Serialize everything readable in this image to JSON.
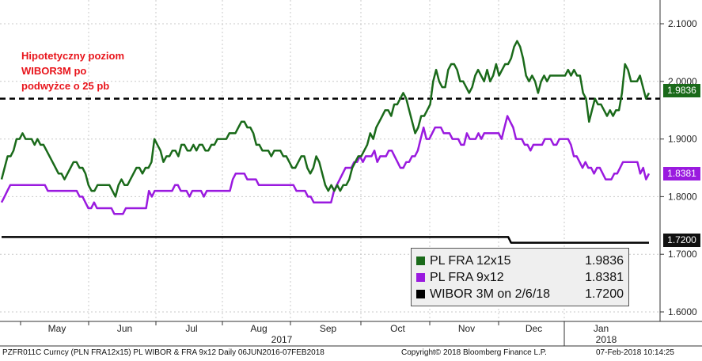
{
  "chart_data": {
    "type": "line",
    "annotation": {
      "lines": [
        "Hipotetyczny poziom",
        "WIBOR3M po",
        "podwyżce o 25 pb"
      ],
      "reference_value": 1.97,
      "style": "dashed black"
    },
    "yticks": [
      "2.1000",
      "2.0000",
      "1.9000",
      "1.8000",
      "1.7000",
      "1.6000"
    ],
    "ytick_values": [
      2.1,
      2.0,
      1.9,
      1.8,
      1.7,
      1.6
    ],
    "ylim": [
      1.58,
      2.14
    ],
    "months": [
      "May",
      "Jun",
      "Jul",
      "Aug",
      "Sep",
      "Oct",
      "Nov",
      "Dec",
      "Jan"
    ],
    "years": [
      "2017",
      "2018"
    ],
    "grid": true,
    "legend_placement": "bottom-right",
    "series": [
      {
        "name": "PL FRA 12x15",
        "value_label": "1.9836",
        "color": "#1a6a1a",
        "values": [
          1.83,
          1.85,
          1.87,
          1.87,
          1.88,
          1.9,
          1.9,
          1.91,
          1.9,
          1.9,
          1.9,
          1.89,
          1.9,
          1.89,
          1.89,
          1.88,
          1.87,
          1.86,
          1.85,
          1.84,
          1.84,
          1.83,
          1.84,
          1.85,
          1.86,
          1.86,
          1.85,
          1.85,
          1.84,
          1.82,
          1.81,
          1.81,
          1.82,
          1.82,
          1.82,
          1.82,
          1.82,
          1.81,
          1.8,
          1.82,
          1.83,
          1.82,
          1.82,
          1.83,
          1.84,
          1.85,
          1.85,
          1.84,
          1.85,
          1.85,
          1.86,
          1.9,
          1.89,
          1.88,
          1.86,
          1.87,
          1.87,
          1.88,
          1.88,
          1.87,
          1.89,
          1.89,
          1.88,
          1.88,
          1.89,
          1.88,
          1.89,
          1.89,
          1.88,
          1.88,
          1.89,
          1.89,
          1.9,
          1.9,
          1.9,
          1.9,
          1.91,
          1.91,
          1.91,
          1.92,
          1.93,
          1.93,
          1.92,
          1.92,
          1.91,
          1.89,
          1.89,
          1.88,
          1.88,
          1.88,
          1.87,
          1.88,
          1.88,
          1.88,
          1.87,
          1.87,
          1.86,
          1.85,
          1.85,
          1.86,
          1.87,
          1.87,
          1.85,
          1.84,
          1.85,
          1.87,
          1.86,
          1.84,
          1.82,
          1.81,
          1.82,
          1.81,
          1.82,
          1.81,
          1.82,
          1.82,
          1.83,
          1.85,
          1.86,
          1.87,
          1.87,
          1.88,
          1.89,
          1.91,
          1.9,
          1.92,
          1.93,
          1.94,
          1.95,
          1.95,
          1.94,
          1.96,
          1.96,
          1.97,
          1.98,
          1.97,
          1.95,
          1.93,
          1.91,
          1.92,
          1.94,
          1.94,
          1.95,
          1.96,
          2.0,
          2.02,
          2.0,
          1.99,
          1.99,
          2.02,
          2.03,
          2.03,
          2.02,
          2.0,
          2.0,
          1.99,
          1.98,
          1.99,
          2.01,
          2.02,
          2.01,
          2.0,
          2.02,
          2.0,
          2.01,
          2.03,
          2.01,
          2.02,
          2.03,
          2.03,
          2.04,
          2.06,
          2.07,
          2.06,
          2.04,
          2.01,
          2.0,
          2.01,
          2.0,
          1.98,
          2.0,
          2.01,
          2.0,
          2.01,
          2.01,
          2.01,
          2.01,
          2.01,
          2.01,
          2.02,
          2.01,
          2.02,
          2.01,
          2.01,
          1.98,
          1.97,
          1.93,
          1.95,
          1.97,
          1.96,
          1.96,
          1.95,
          1.94,
          1.95,
          1.94,
          1.95,
          1.95,
          1.98,
          2.03,
          2.02,
          2.0,
          2.0,
          2.0,
          2.01,
          1.99,
          1.97,
          1.98
        ]
      },
      {
        "name": "PL FRA 9x12",
        "value_label": "1.8381",
        "color": "#9a1adf",
        "values": [
          1.79,
          1.8,
          1.81,
          1.82,
          1.82,
          1.82,
          1.82,
          1.82,
          1.82,
          1.82,
          1.82,
          1.82,
          1.82,
          1.82,
          1.82,
          1.82,
          1.81,
          1.81,
          1.81,
          1.81,
          1.81,
          1.81,
          1.81,
          1.81,
          1.81,
          1.81,
          1.81,
          1.8,
          1.8,
          1.79,
          1.78,
          1.78,
          1.79,
          1.78,
          1.78,
          1.78,
          1.78,
          1.78,
          1.78,
          1.77,
          1.77,
          1.77,
          1.77,
          1.78,
          1.78,
          1.78,
          1.78,
          1.78,
          1.78,
          1.78,
          1.78,
          1.81,
          1.8,
          1.81,
          1.81,
          1.81,
          1.81,
          1.81,
          1.81,
          1.81,
          1.82,
          1.82,
          1.81,
          1.81,
          1.81,
          1.8,
          1.81,
          1.81,
          1.81,
          1.81,
          1.8,
          1.81,
          1.81,
          1.81,
          1.81,
          1.81,
          1.81,
          1.81,
          1.81,
          1.81,
          1.83,
          1.84,
          1.84,
          1.84,
          1.84,
          1.83,
          1.83,
          1.83,
          1.83,
          1.82,
          1.82,
          1.82,
          1.82,
          1.82,
          1.82,
          1.82,
          1.82,
          1.82,
          1.82,
          1.82,
          1.82,
          1.82,
          1.81,
          1.81,
          1.81,
          1.81,
          1.8,
          1.8,
          1.79,
          1.79,
          1.79,
          1.79,
          1.79,
          1.79,
          1.79,
          1.81,
          1.82,
          1.83,
          1.84,
          1.85,
          1.85,
          1.85,
          1.86,
          1.86,
          1.87,
          1.86,
          1.87,
          1.87,
          1.87,
          1.88,
          1.86,
          1.87,
          1.87,
          1.87,
          1.88,
          1.88,
          1.87,
          1.86,
          1.85,
          1.85,
          1.86,
          1.86,
          1.87,
          1.87,
          1.88,
          1.9,
          1.92,
          1.9,
          1.9,
          1.91,
          1.92,
          1.92,
          1.92,
          1.91,
          1.91,
          1.91,
          1.9,
          1.9,
          1.9,
          1.89,
          1.89,
          1.91,
          1.9,
          1.9,
          1.9,
          1.91,
          1.9,
          1.91,
          1.91,
          1.91,
          1.91,
          1.91,
          1.91,
          1.9,
          1.92,
          1.94,
          1.93,
          1.92,
          1.9,
          1.9,
          1.9,
          1.89,
          1.89,
          1.88,
          1.89,
          1.89,
          1.89,
          1.89,
          1.9,
          1.9,
          1.9,
          1.89,
          1.89,
          1.9,
          1.9,
          1.9,
          1.9,
          1.89,
          1.87,
          1.87,
          1.86,
          1.85,
          1.86,
          1.85,
          1.85,
          1.84,
          1.85,
          1.85,
          1.84,
          1.83,
          1.83,
          1.83,
          1.84,
          1.84,
          1.85,
          1.86,
          1.86,
          1.86,
          1.86,
          1.86,
          1.86,
          1.84,
          1.85,
          1.83,
          1.84
        ]
      },
      {
        "name": "WIBOR 3M on 2/6/18",
        "value_label": "1.7200",
        "color": "#000000",
        "values": [
          1.73,
          1.73,
          1.73,
          1.73,
          1.73,
          1.73,
          1.73,
          1.73,
          1.73,
          1.73,
          1.73,
          1.73,
          1.73,
          1.73,
          1.73,
          1.73,
          1.73,
          1.73,
          1.73,
          1.73,
          1.73,
          1.73,
          1.73,
          1.73,
          1.73,
          1.73,
          1.73,
          1.73,
          1.73,
          1.73,
          1.73,
          1.73,
          1.73,
          1.73,
          1.73,
          1.73,
          1.73,
          1.73,
          1.73,
          1.73,
          1.73,
          1.73,
          1.73,
          1.73,
          1.73,
          1.73,
          1.73,
          1.73,
          1.73,
          1.73,
          1.73,
          1.73,
          1.73,
          1.73,
          1.73,
          1.73,
          1.73,
          1.73,
          1.73,
          1.73,
          1.73,
          1.73,
          1.73,
          1.73,
          1.73,
          1.73,
          1.73,
          1.73,
          1.73,
          1.73,
          1.73,
          1.73,
          1.73,
          1.73,
          1.73,
          1.73,
          1.73,
          1.73,
          1.73,
          1.73,
          1.73,
          1.73,
          1.73,
          1.73,
          1.73,
          1.73,
          1.73,
          1.73,
          1.73,
          1.73,
          1.73,
          1.73,
          1.73,
          1.73,
          1.73,
          1.73,
          1.73,
          1.73,
          1.73,
          1.73,
          1.73,
          1.73,
          1.73,
          1.73,
          1.73,
          1.73,
          1.73,
          1.73,
          1.73,
          1.73,
          1.73,
          1.73,
          1.73,
          1.73,
          1.73,
          1.73,
          1.73,
          1.73,
          1.73,
          1.73,
          1.73,
          1.73,
          1.73,
          1.73,
          1.73,
          1.73,
          1.73,
          1.73,
          1.73,
          1.73,
          1.73,
          1.73,
          1.73,
          1.73,
          1.73,
          1.73,
          1.73,
          1.73,
          1.73,
          1.73,
          1.73,
          1.73,
          1.73,
          1.73,
          1.73,
          1.73,
          1.73,
          1.73,
          1.73,
          1.73,
          1.73,
          1.73,
          1.73,
          1.73,
          1.73,
          1.73,
          1.73,
          1.73,
          1.73,
          1.73,
          1.73,
          1.73,
          1.73,
          1.73,
          1.73,
          1.73,
          1.73,
          1.73,
          1.73,
          1.73,
          1.73,
          1.73,
          1.73,
          1.73,
          1.73,
          1.73,
          1.73,
          1.73,
          1.73,
          1.73,
          1.73,
          1.72,
          1.72,
          1.72,
          1.72,
          1.72,
          1.72,
          1.72,
          1.72,
          1.72,
          1.72,
          1.72,
          1.72,
          1.72,
          1.72,
          1.72,
          1.72,
          1.72,
          1.72,
          1.72,
          1.72,
          1.72,
          1.72,
          1.72,
          1.72,
          1.72,
          1.72,
          1.72,
          1.72,
          1.72,
          1.72,
          1.72,
          1.72,
          1.72,
          1.72,
          1.72,
          1.72,
          1.72,
          1.72,
          1.72,
          1.72,
          1.72,
          1.72,
          1.72,
          1.72,
          1.72,
          1.72,
          1.72,
          1.72,
          1.72,
          1.72
        ]
      }
    ]
  },
  "footer": {
    "left": "PZFR011C Curncy (PLN FRA12x15) PL WIBOR & FRA 9x12  Daily 06JUN2016-07FEB2018",
    "center": "Copyright© 2018 Bloomberg Finance L.P.",
    "right": "07-Feb-2018 10:14:25"
  }
}
